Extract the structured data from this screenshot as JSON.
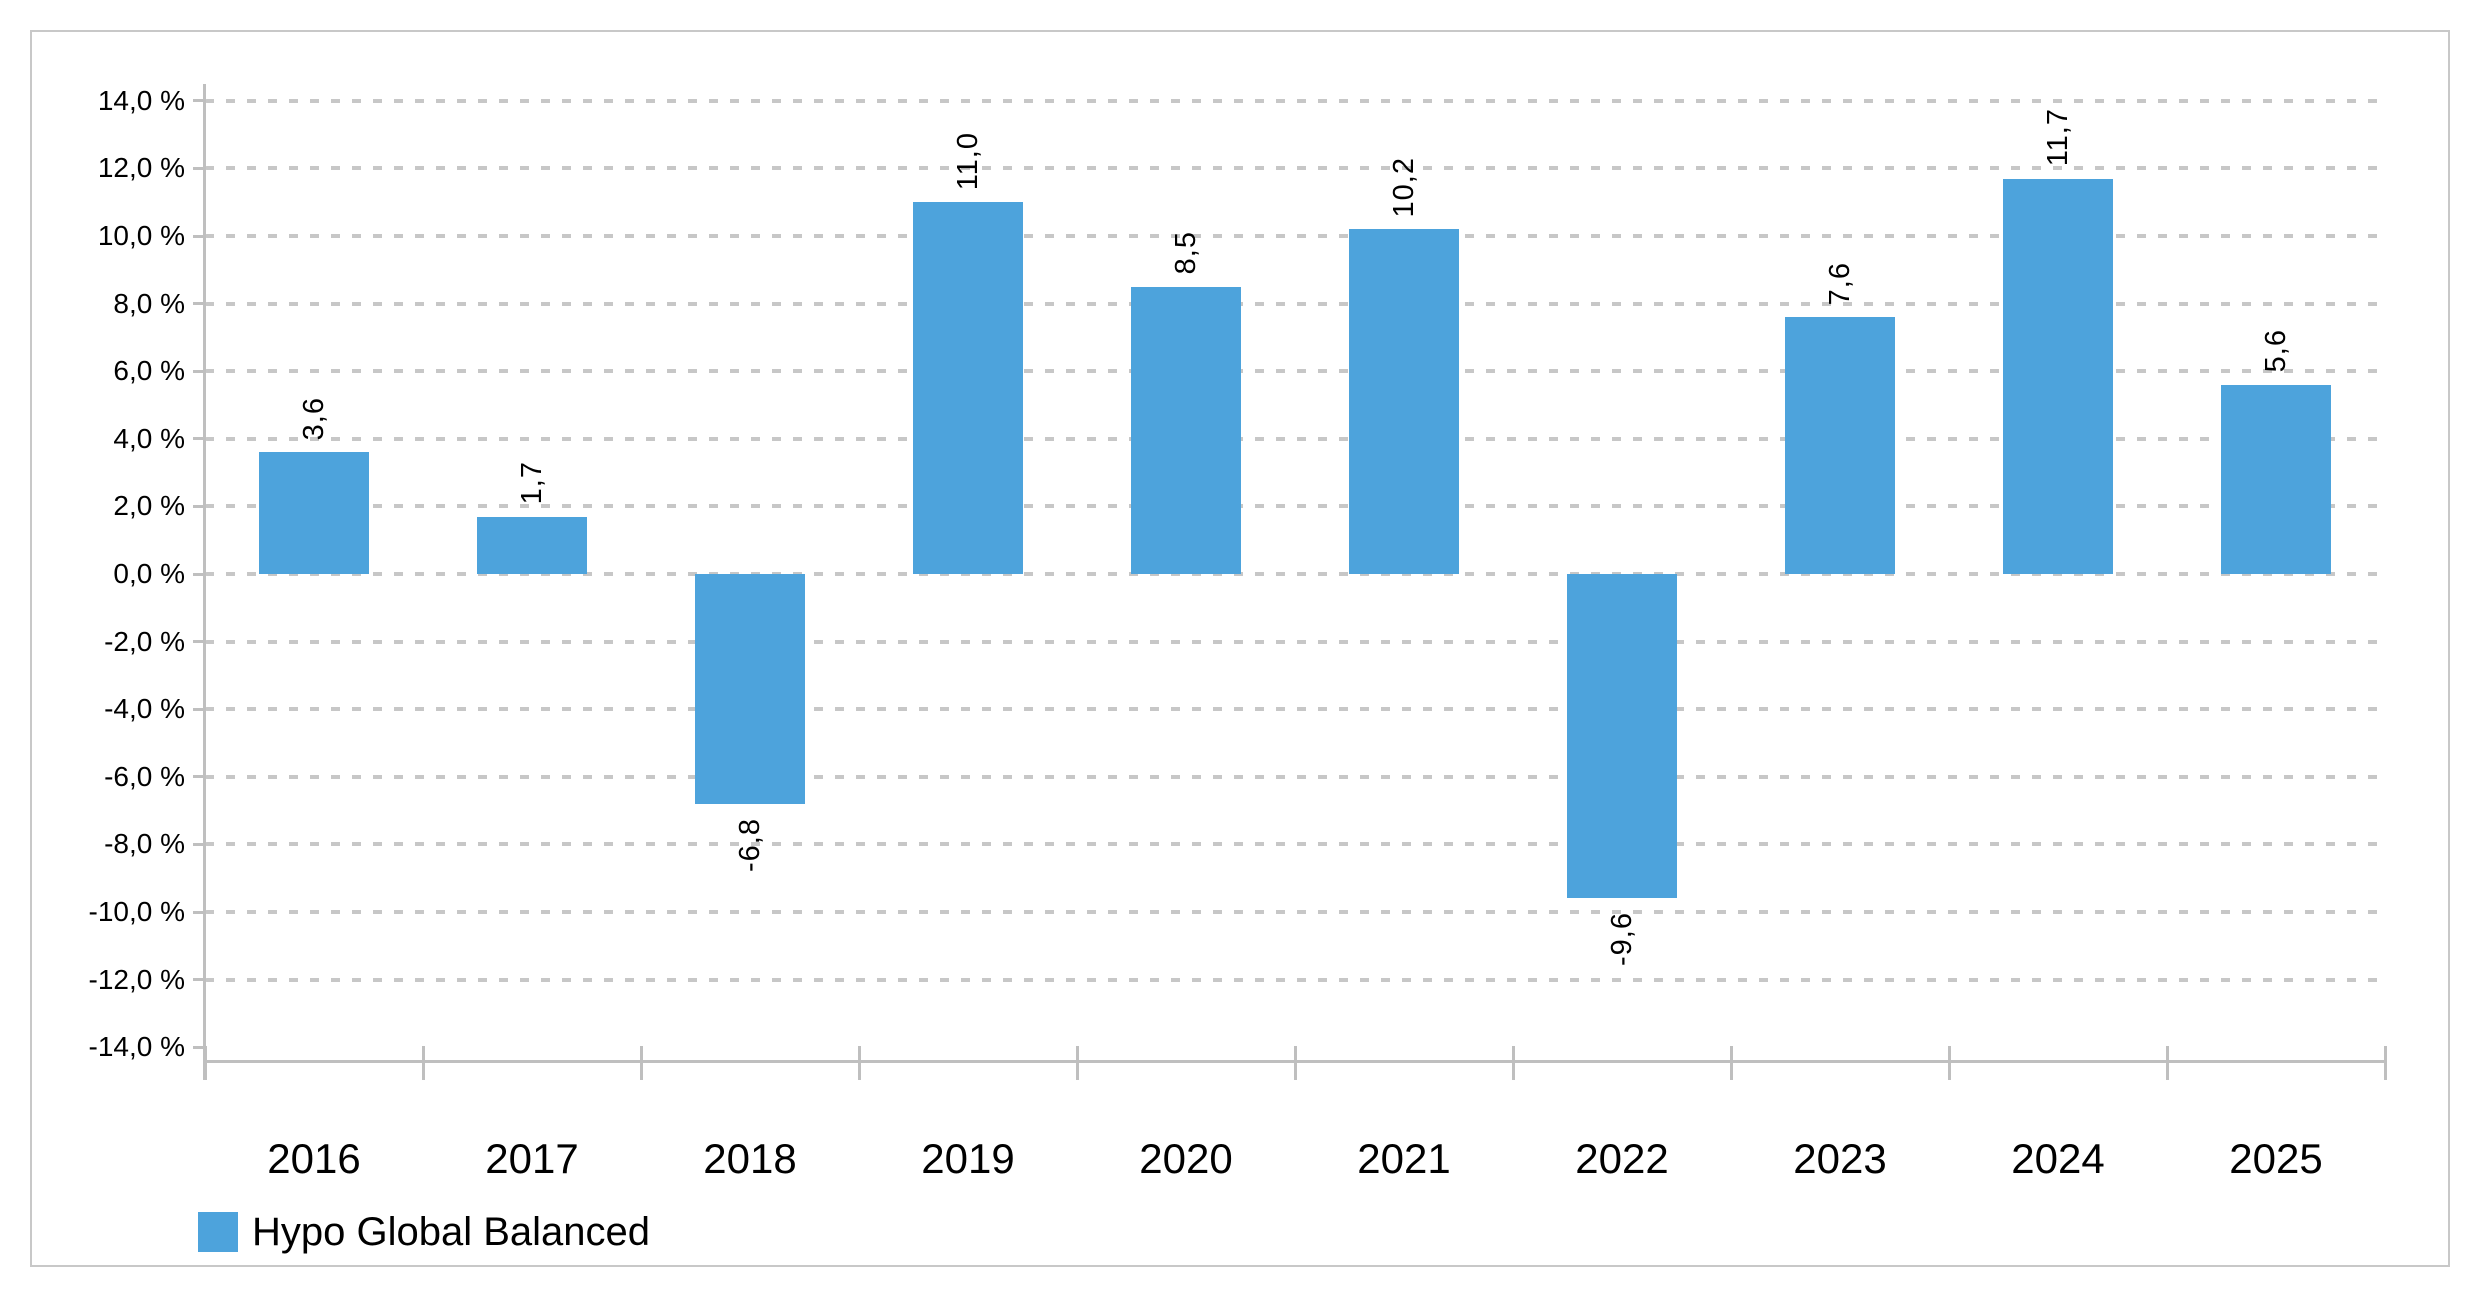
{
  "chart_data": {
    "type": "bar",
    "title": "",
    "xlabel": "",
    "ylabel": "",
    "categories": [
      "2016",
      "2017",
      "2018",
      "2019",
      "2020",
      "2021",
      "2022",
      "2023",
      "2024",
      "2025"
    ],
    "series": [
      {
        "name": "Hypo Global Balanced",
        "values": [
          3.6,
          1.7,
          -6.8,
          11.0,
          8.5,
          10.2,
          -9.6,
          7.6,
          11.7,
          5.6
        ],
        "value_labels": [
          "3,6",
          "1,7",
          "-6,8",
          "11,0",
          "8,5",
          "10,2",
          "-9,6",
          "7,6",
          "11,7",
          "5,6"
        ],
        "color": "#4da3dc"
      }
    ],
    "ylim": [
      -14.5,
      14.5
    ],
    "y_ticks": [
      {
        "value": 14,
        "label": "14,0 %"
      },
      {
        "value": 12,
        "label": "12,0 %"
      },
      {
        "value": 10,
        "label": "10,0 %"
      },
      {
        "value": 8,
        "label": "8,0 %"
      },
      {
        "value": 6,
        "label": "6,0 %"
      },
      {
        "value": 4,
        "label": "4,0 %"
      },
      {
        "value": 2,
        "label": "2,0 %"
      },
      {
        "value": 0,
        "label": "0,0 %"
      },
      {
        "value": -2,
        "label": "-2,0 %"
      },
      {
        "value": -4,
        "label": "-4,0 %"
      },
      {
        "value": -6,
        "label": "-6,0 %"
      },
      {
        "value": -8,
        "label": "-8,0 %"
      },
      {
        "value": -10,
        "label": "-10,0 %"
      },
      {
        "value": -12,
        "label": "-12,0 %"
      },
      {
        "value": -14,
        "label": "-14,0 %"
      }
    ],
    "gridline_values": [
      14,
      12,
      10,
      8,
      6,
      4,
      2,
      0,
      -2,
      -4,
      -6,
      -8,
      -10,
      -12
    ],
    "grid_style": "dashed horizontal",
    "legend_position": "bottom-left",
    "value_label_rotation_deg": -90,
    "decimal_separator": ","
  },
  "colors": {
    "bar": "#4da3dc",
    "gridline": "#c7c7c7",
    "axis": "#bfbfbf",
    "card_border": "#c8c8c8",
    "text": "#000000",
    "background": "#ffffff"
  }
}
